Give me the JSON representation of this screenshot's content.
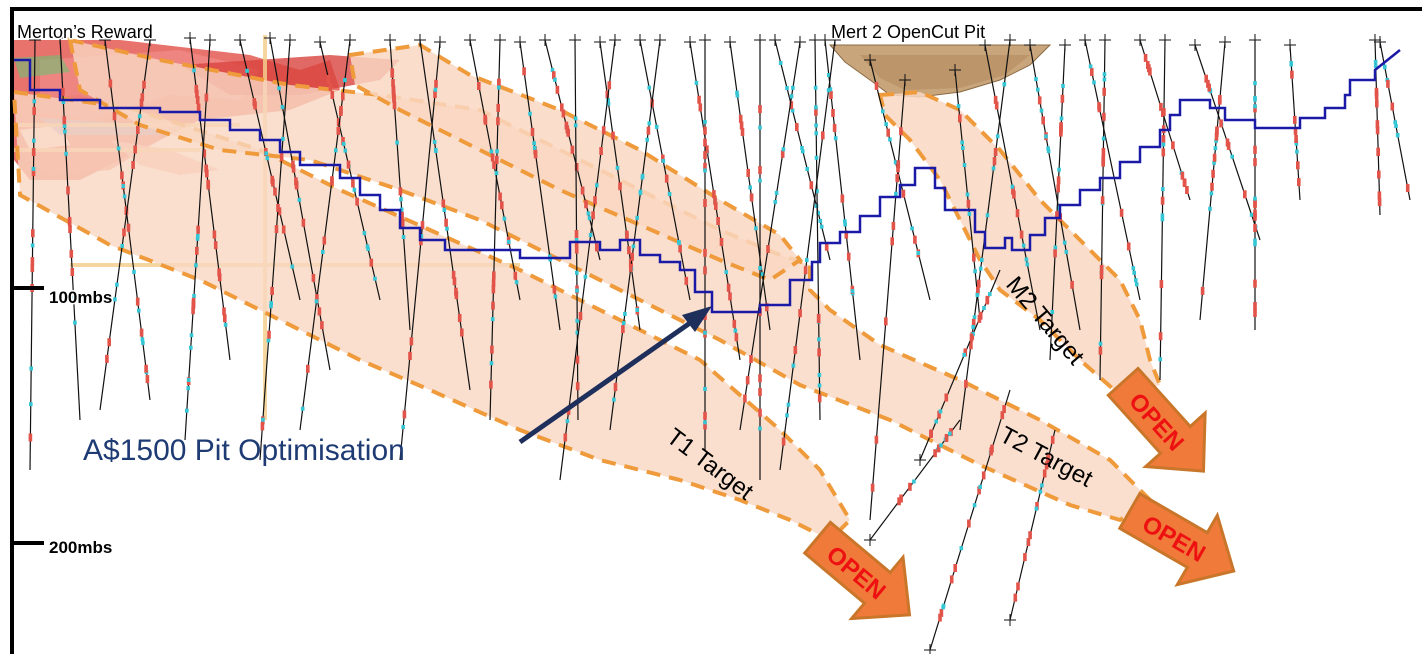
{
  "title_left": "Merton’s Reward",
  "title_right": "Mert 2 OpenCut Pit",
  "depth_labels": {
    "d100": "100mbs",
    "d200": "200mbs"
  },
  "callout": "A$1500 Pit Optimisation",
  "targets": {
    "t1": "T1 Target",
    "t2": "T2 Target",
    "m2": "M2 Target"
  },
  "open_label": "OPEN",
  "colors": {
    "pit_outline": "#1a1aa6",
    "target_fill": "#f9d7c2",
    "target_dash": "#ef9a3b",
    "arrow_fill": "#f07a3a",
    "arrow_border": "#c9762b",
    "open_text": "#ee1111",
    "callout_text": "#1f3b73",
    "callout_arrow": "#1f2f5c",
    "drillhole": "#111111",
    "ore_red": "#e2534a",
    "ore_cyan": "#35c6d6",
    "pit_solid": "#c7a479"
  }
}
